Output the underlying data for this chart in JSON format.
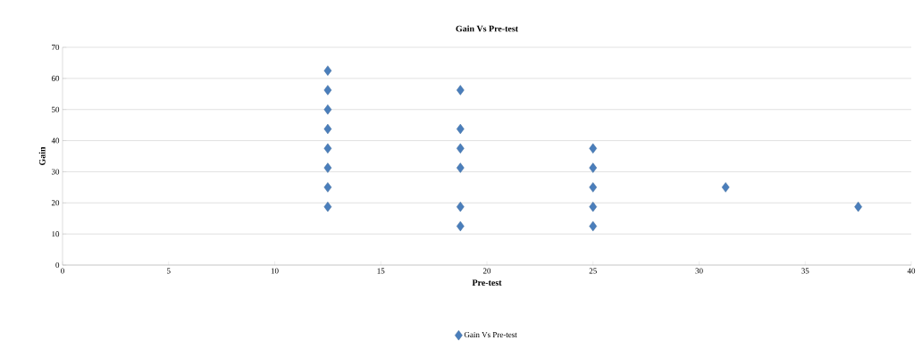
{
  "chart_data": {
    "type": "scatter",
    "title": "Gain Vs Pre-test",
    "xlabel": "Pre-test",
    "ylabel": "Gain",
    "x": [
      12.5,
      12.5,
      12.5,
      12.5,
      12.5,
      12.5,
      12.5,
      12.5,
      18.75,
      18.75,
      18.75,
      18.75,
      18.75,
      18.75,
      25,
      25,
      25,
      25,
      25,
      31.25,
      37.5
    ],
    "series": [
      {
        "name": "Gain Vs Pre-test",
        "color": "#4a7ebb",
        "values": [
          62.5,
          56.25,
          50,
          43.75,
          37.5,
          31.25,
          25,
          18.75,
          56.25,
          43.75,
          37.5,
          31.25,
          18.75,
          12.5,
          37.5,
          31.25,
          25,
          18.75,
          12.5,
          25,
          18.75
        ]
      }
    ],
    "xlim": [
      0,
      40
    ],
    "xticks": [
      0,
      5,
      10,
      15,
      20,
      25,
      30,
      35,
      40
    ],
    "ylim": [
      0,
      70
    ],
    "yticks": [
      0,
      10,
      20,
      30,
      40,
      50,
      60,
      70
    ],
    "grid": "y",
    "legend": "bottom",
    "marker": "diamond"
  }
}
